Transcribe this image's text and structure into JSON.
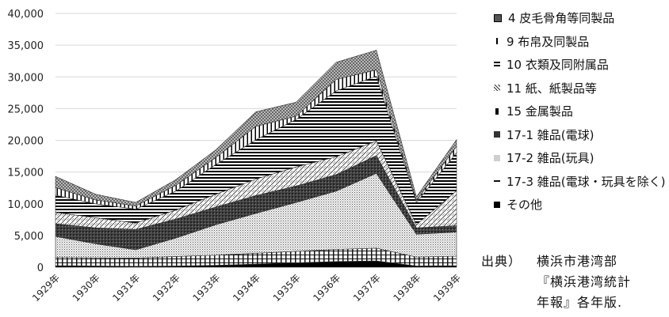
{
  "chart_data": {
    "type": "area",
    "stacked": true,
    "x": [
      "1929年",
      "1930年",
      "1931年",
      "1932年",
      "1933年",
      "1934年",
      "1935年",
      "1936年",
      "1937年",
      "1938年",
      "1939年"
    ],
    "ylim": [
      0,
      40000
    ],
    "yticks": [
      "0",
      "5,000",
      "10,000",
      "15,000",
      "20,000",
      "25,000",
      "30,000",
      "35,000",
      "40,000"
    ],
    "grid": true,
    "legend_position": "right",
    "series": [
      {
        "name": "その他",
        "values": [
          250,
          200,
          150,
          200,
          300,
          500,
          700,
          900,
          1000,
          200,
          250
        ]
      },
      {
        "name": "17-3 雑品(電球・玩具を除く)",
        "values": [
          1300,
          1300,
          1300,
          1500,
          1600,
          1700,
          1800,
          1900,
          2000,
          1400,
          1500
        ]
      },
      {
        "name": "17-2 雑品(玩具)",
        "values": [
          3300,
          2200,
          1300,
          2900,
          4800,
          6300,
          7700,
          9200,
          11800,
          3600,
          3800
        ]
      },
      {
        "name": "17-1 雑品(電球)",
        "values": [
          2000,
          2500,
          3200,
          3000,
          2800,
          2800,
          2600,
          2600,
          2800,
          1000,
          1000
        ]
      },
      {
        "name": "15 金属製品",
        "values": [
          0,
          0,
          0,
          0,
          0,
          0,
          0,
          0,
          0,
          0,
          0
        ]
      },
      {
        "name": "11 紙、紙製品等",
        "values": [
          1800,
          1600,
          1000,
          1400,
          2000,
          2600,
          3000,
          2800,
          2300,
          500,
          5500
        ]
      },
      {
        "name": "10 衣類及同附属品",
        "values": [
          2700,
          2200,
          2200,
          3000,
          4700,
          6200,
          7500,
          10400,
          10200,
          3500,
          6000
        ]
      },
      {
        "name": "9 布帛及同製品",
        "values": [
          1200,
          600,
          500,
          900,
          1100,
          2100,
          500,
          1800,
          1000,
          300,
          1000
        ]
      },
      {
        "name": "4 皮毛骨角等同製品",
        "values": [
          1750,
          900,
          550,
          900,
          1200,
          2300,
          2200,
          2700,
          3100,
          600,
          1050
        ]
      }
    ],
    "legend_order": [
      "4 皮毛骨角等同製品",
      "9 布帛及同製品",
      "10 衣類及同附属品",
      "11 紙、紙製品等",
      "15 金属製品",
      "17-1 雑品(電球)",
      "17-2 雑品(玩具)",
      "17-3 雑品(電球・玩具を除く)",
      "その他"
    ]
  },
  "source_note": {
    "lead": "出典）",
    "line1": "横浜市港湾部",
    "line2": "『横浜港湾統計",
    "line3": "年報』各年版."
  }
}
